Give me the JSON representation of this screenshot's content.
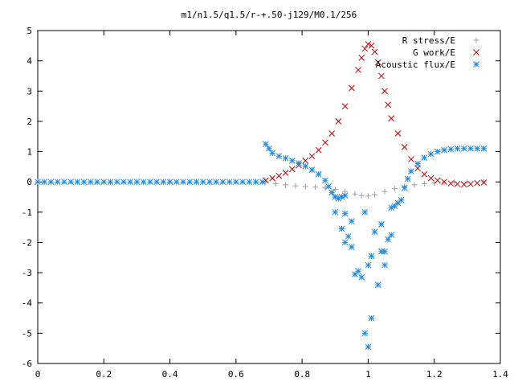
{
  "chart_data": {
    "type": "scatter",
    "title": "m1/n1.5/q1.5/r-+.50-j129/M0.1/256",
    "xlabel": "",
    "ylabel": "",
    "xlim": [
      0,
      1.4
    ],
    "ylim": [
      -6,
      5
    ],
    "xticks": [
      "0",
      "0.2",
      "0.4",
      "0.6",
      "0.8",
      "1",
      "1.2",
      "1.4"
    ],
    "yticks": [
      "-6",
      "-5",
      "-4",
      "-3",
      "-2",
      "-1",
      "0",
      "1",
      "2",
      "3",
      "4",
      "5"
    ],
    "grid": false,
    "legend_position": "top-right",
    "series": [
      {
        "name": "R stress/E",
        "marker": "+",
        "color": "#a0a0a0",
        "points": [
          [
            0.69,
            0.0
          ],
          [
            0.72,
            -0.06
          ],
          [
            0.75,
            -0.1
          ],
          [
            0.78,
            -0.13
          ],
          [
            0.81,
            -0.15
          ],
          [
            0.84,
            -0.17
          ],
          [
            0.87,
            -0.2
          ],
          [
            0.9,
            -0.25
          ],
          [
            0.93,
            -0.32
          ],
          [
            0.96,
            -0.4
          ],
          [
            0.98,
            -0.45
          ],
          [
            1.0,
            -0.47
          ],
          [
            1.02,
            -0.42
          ],
          [
            1.05,
            -0.32
          ],
          [
            1.08,
            -0.22
          ],
          [
            1.11,
            -0.14
          ],
          [
            1.14,
            -0.1
          ],
          [
            1.17,
            -0.06
          ],
          [
            1.2,
            -0.03
          ],
          [
            1.23,
            -0.02
          ],
          [
            1.26,
            -0.01
          ],
          [
            1.3,
            0.0
          ],
          [
            1.35,
            0.0
          ]
        ]
      },
      {
        "name": "G work/E",
        "marker": "x",
        "color": "#cc0000",
        "points": [
          [
            0.69,
            0.05
          ],
          [
            0.71,
            0.12
          ],
          [
            0.73,
            0.2
          ],
          [
            0.75,
            0.3
          ],
          [
            0.77,
            0.42
          ],
          [
            0.79,
            0.55
          ],
          [
            0.81,
            0.7
          ],
          [
            0.83,
            0.85
          ],
          [
            0.85,
            1.05
          ],
          [
            0.87,
            1.3
          ],
          [
            0.89,
            1.6
          ],
          [
            0.91,
            2.0
          ],
          [
            0.93,
            2.5
          ],
          [
            0.95,
            3.1
          ],
          [
            0.97,
            3.7
          ],
          [
            0.98,
            4.1
          ],
          [
            0.99,
            4.4
          ],
          [
            1.0,
            4.55
          ],
          [
            1.01,
            4.5
          ],
          [
            1.02,
            4.3
          ],
          [
            1.03,
            3.95
          ],
          [
            1.04,
            3.5
          ],
          [
            1.05,
            3.0
          ],
          [
            1.06,
            2.55
          ],
          [
            1.07,
            2.1
          ],
          [
            1.09,
            1.6
          ],
          [
            1.11,
            1.15
          ],
          [
            1.13,
            0.75
          ],
          [
            1.15,
            0.45
          ],
          [
            1.17,
            0.25
          ],
          [
            1.19,
            0.12
          ],
          [
            1.21,
            0.05
          ],
          [
            1.23,
            0.0
          ],
          [
            1.25,
            -0.05
          ],
          [
            1.27,
            -0.07
          ],
          [
            1.29,
            -0.08
          ],
          [
            1.31,
            -0.07
          ],
          [
            1.33,
            -0.04
          ],
          [
            1.35,
            -0.02
          ]
        ]
      },
      {
        "name": "Acoustic flux/E",
        "marker": "*",
        "color": "#1a88e0",
        "points": [
          [
            0.0,
            0.0
          ],
          [
            0.02,
            0.0
          ],
          [
            0.04,
            0.0
          ],
          [
            0.06,
            0.0
          ],
          [
            0.08,
            0.0
          ],
          [
            0.1,
            0.0
          ],
          [
            0.12,
            0.0
          ],
          [
            0.14,
            0.0
          ],
          [
            0.16,
            0.0
          ],
          [
            0.18,
            0.0
          ],
          [
            0.2,
            0.0
          ],
          [
            0.22,
            0.0
          ],
          [
            0.24,
            0.0
          ],
          [
            0.26,
            0.0
          ],
          [
            0.28,
            0.0
          ],
          [
            0.3,
            0.0
          ],
          [
            0.32,
            0.0
          ],
          [
            0.34,
            0.0
          ],
          [
            0.36,
            0.0
          ],
          [
            0.38,
            0.0
          ],
          [
            0.4,
            0.0
          ],
          [
            0.42,
            0.0
          ],
          [
            0.44,
            0.0
          ],
          [
            0.46,
            0.0
          ],
          [
            0.48,
            0.0
          ],
          [
            0.5,
            0.0
          ],
          [
            0.52,
            0.0
          ],
          [
            0.54,
            0.0
          ],
          [
            0.56,
            0.0
          ],
          [
            0.58,
            0.0
          ],
          [
            0.6,
            0.0
          ],
          [
            0.62,
            0.0
          ],
          [
            0.64,
            0.0
          ],
          [
            0.66,
            0.0
          ],
          [
            0.68,
            0.0
          ],
          [
            0.69,
            1.25
          ],
          [
            0.7,
            1.1
          ],
          [
            0.71,
            0.95
          ],
          [
            0.73,
            0.85
          ],
          [
            0.75,
            0.78
          ],
          [
            0.77,
            0.7
          ],
          [
            0.79,
            0.62
          ],
          [
            0.81,
            0.52
          ],
          [
            0.83,
            0.4
          ],
          [
            0.85,
            0.25
          ],
          [
            0.87,
            0.05
          ],
          [
            0.88,
            -0.15
          ],
          [
            0.89,
            -0.35
          ],
          [
            0.9,
            -0.5
          ],
          [
            0.91,
            -0.55
          ],
          [
            0.92,
            -0.5
          ],
          [
            0.93,
            -0.45
          ],
          [
            0.9,
            -1.0
          ],
          [
            0.92,
            -1.55
          ],
          [
            0.93,
            -2.0
          ],
          [
            0.94,
            -1.8
          ],
          [
            0.95,
            -2.15
          ],
          [
            0.93,
            -1.05
          ],
          [
            0.95,
            -1.3
          ],
          [
            0.96,
            -3.05
          ],
          [
            0.97,
            -2.95
          ],
          [
            0.98,
            -3.15
          ],
          [
            0.99,
            -5.0
          ],
          [
            1.0,
            -5.45
          ],
          [
            1.0,
            -2.75
          ],
          [
            1.01,
            -2.45
          ],
          [
            1.02,
            -1.65
          ],
          [
            1.03,
            -3.4
          ],
          [
            1.04,
            -2.3
          ],
          [
            1.05,
            -2.3
          ],
          [
            1.05,
            -2.75
          ],
          [
            1.06,
            -1.9
          ],
          [
            1.07,
            -1.75
          ],
          [
            1.01,
            -4.5
          ],
          [
            0.99,
            -1.0
          ],
          [
            1.04,
            -1.4
          ],
          [
            1.08,
            -0.8
          ],
          [
            1.09,
            -0.7
          ],
          [
            1.1,
            -0.6
          ],
          [
            1.07,
            -0.85
          ],
          [
            1.11,
            -0.2
          ],
          [
            1.12,
            0.1
          ],
          [
            1.13,
            0.35
          ],
          [
            1.15,
            0.6
          ],
          [
            1.17,
            0.8
          ],
          [
            1.19,
            0.92
          ],
          [
            1.21,
            1.0
          ],
          [
            1.23,
            1.05
          ],
          [
            1.25,
            1.08
          ],
          [
            1.27,
            1.1
          ],
          [
            1.29,
            1.1
          ],
          [
            1.31,
            1.1
          ],
          [
            1.33,
            1.1
          ],
          [
            1.35,
            1.1
          ]
        ]
      }
    ]
  }
}
